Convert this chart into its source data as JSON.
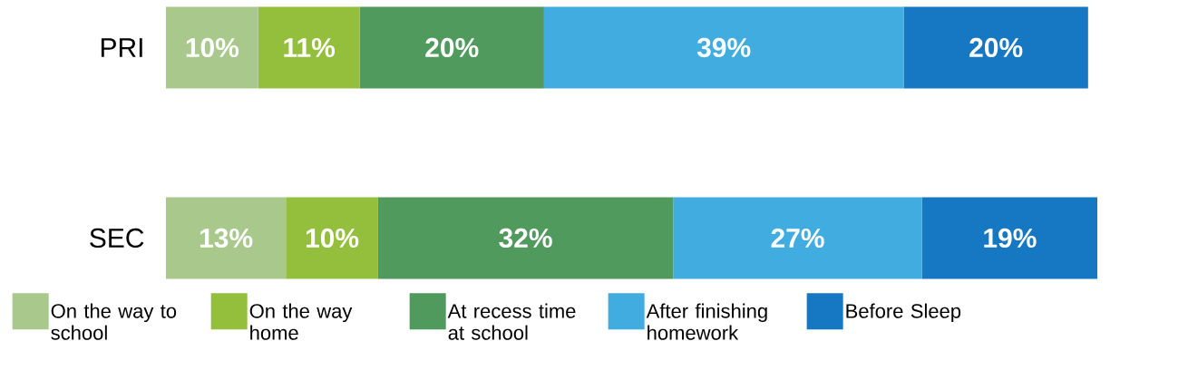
{
  "chart_data": {
    "type": "bar",
    "orientation": "horizontal",
    "stacked": true,
    "categories": [
      "PRI",
      "SEC"
    ],
    "series": [
      {
        "name": "On the way to school",
        "color": "#a9c98c",
        "values": [
          10,
          13
        ],
        "value_labels": [
          "10%",
          "13%"
        ]
      },
      {
        "name": "On the way home",
        "color": "#93bf3c",
        "values": [
          11,
          10
        ],
        "value_labels": [
          "11%",
          "10%"
        ]
      },
      {
        "name": "At recess time at school",
        "color": "#4f9a5c",
        "values": [
          20,
          32
        ],
        "value_labels": [
          "20%",
          "32%"
        ]
      },
      {
        "name": "After finishing homework",
        "color": "#40ace0",
        "values": [
          39,
          27
        ],
        "value_labels": [
          "39%",
          "27%"
        ]
      },
      {
        "name": "Before Sleep",
        "color": "#1677c2",
        "values": [
          20,
          19
        ],
        "value_labels": [
          "20%",
          "19%"
        ]
      }
    ],
    "legend": "bottom"
  }
}
